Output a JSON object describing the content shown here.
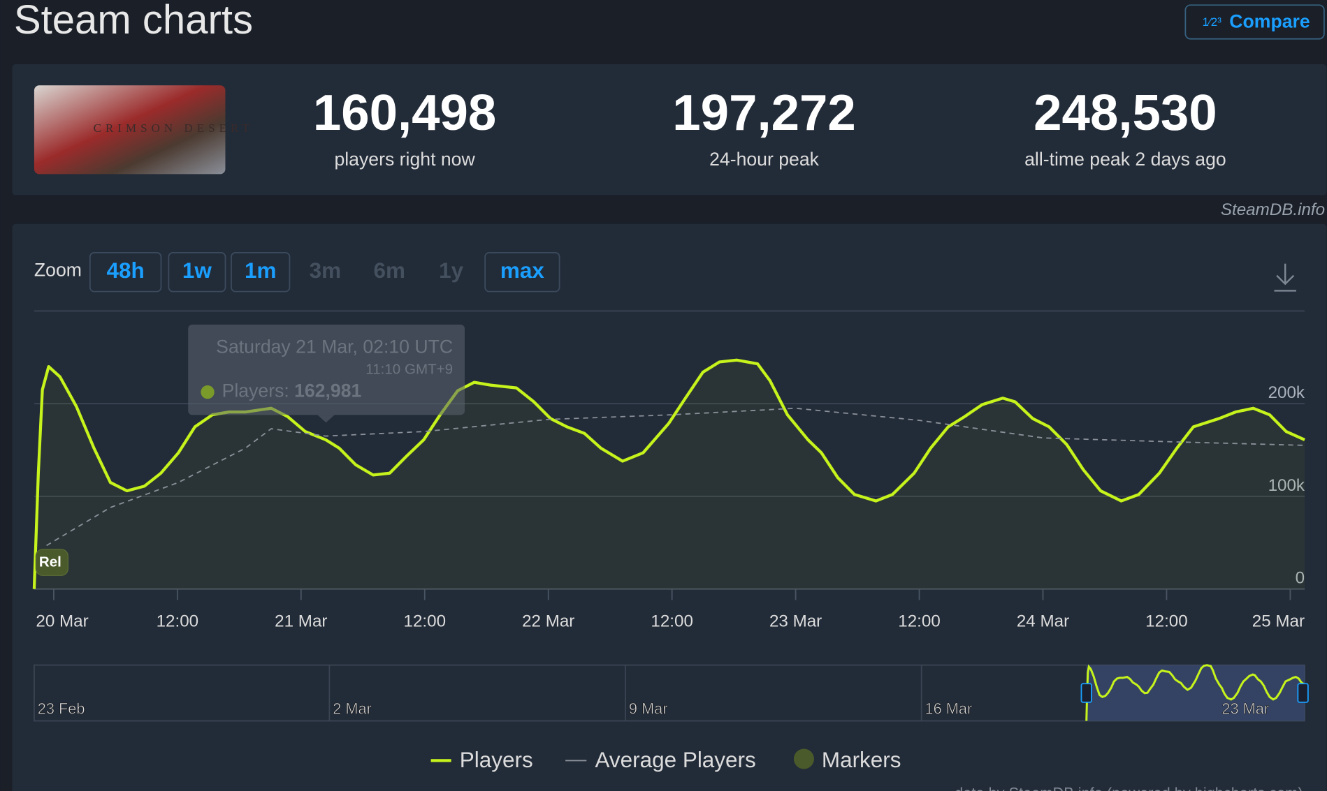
{
  "header": {
    "title": "Steam charts",
    "compare": "Compare",
    "compare_icon": "1⁄2³"
  },
  "game": "CRIMSON DESERT",
  "stats": [
    {
      "value": "160,498",
      "label": "players right now"
    },
    {
      "value": "197,272",
      "label": "24-hour peak"
    },
    {
      "value": "248,530",
      "label": "all-time peak 2 days ago"
    }
  ],
  "credit": "SteamDB.info",
  "zoom": {
    "label": "Zoom",
    "options": [
      {
        "label": "48h",
        "enabled": true
      },
      {
        "label": "1w",
        "enabled": true
      },
      {
        "label": "1m",
        "enabled": true
      },
      {
        "label": "3m",
        "enabled": false
      },
      {
        "label": "6m",
        "enabled": false
      },
      {
        "label": "1y",
        "enabled": false
      },
      {
        "label": "max",
        "enabled": true
      }
    ]
  },
  "chart_data": {
    "type": "line",
    "x": [
      -1.9,
      -1.5,
      -1.1,
      -0.5,
      0.6,
      2.2,
      3.9,
      5.5,
      7.1,
      8.8,
      10.4,
      12.1,
      13.7,
      15.4,
      17.0,
      18.6,
      21.1,
      22.7,
      24.4,
      26.4,
      27.7,
      29.3,
      31.0,
      32.6,
      34.2,
      35.9,
      37.5,
      39.2,
      40.8,
      42.4,
      44.9,
      46.6,
      48.2,
      49.8,
      51.5,
      53.1,
      55.2,
      57.2,
      59.7,
      61.3,
      63.0,
      64.6,
      66.3,
      68.3,
      69.5,
      71.2,
      73.2,
      74.5,
      76.1,
      77.7,
      79.8,
      81.4,
      83.5,
      85.1,
      86.8,
      88.4,
      90.1,
      92.1,
      93.3,
      95.0,
      96.6,
      98.3,
      99.9,
      101.6,
      103.6,
      105.3,
      107.3,
      109.0,
      110.6,
      113.1,
      114.7,
      116.4,
      118.0,
      119.6,
      121.4
    ],
    "series": [
      {
        "name": "Players",
        "color": "#c6f31c",
        "values": [
          0,
          125000,
          215000,
          240000,
          229000,
          197000,
          152000,
          115000,
          106000,
          111000,
          125000,
          147000,
          175000,
          188000,
          191000,
          191000,
          195000,
          186000,
          170000,
          161000,
          152000,
          134000,
          123000,
          125000,
          143000,
          161000,
          188000,
          214000,
          223000,
          220000,
          217000,
          202000,
          184000,
          175000,
          168000,
          152000,
          138000,
          147000,
          179000,
          206000,
          234000,
          245000,
          247000,
          243000,
          225000,
          188000,
          161000,
          147000,
          120000,
          102000,
          95000,
          102000,
          125000,
          152000,
          175000,
          186000,
          199000,
          206000,
          202000,
          184000,
          175000,
          156000,
          129000,
          106000,
          95000,
          102000,
          125000,
          152000,
          175000,
          184000,
          191000,
          195000,
          188000,
          170000,
          161000
        ]
      },
      {
        "name": "Average Players",
        "color": "#8a9099",
        "dashed": true,
        "x": [
          -0.7,
          5.5,
          12.1,
          18.6,
          21.1,
          26.4,
          36,
          48,
          60,
          72,
          84,
          96,
          108,
          121.4
        ],
        "values": [
          47000,
          88000,
          115000,
          152000,
          173000,
          165000,
          170000,
          183000,
          188000,
          195000,
          182000,
          163000,
          159000,
          155000
        ]
      }
    ],
    "xlim": [
      -1.9,
      121.4
    ],
    "xticks": [
      {
        "value": 0,
        "label": "20 Mar"
      },
      {
        "value": 12,
        "label": "12:00"
      },
      {
        "value": 24,
        "label": "21 Mar"
      },
      {
        "value": 36,
        "label": "12:00"
      },
      {
        "value": 48,
        "label": "22 Mar"
      },
      {
        "value": 60,
        "label": "12:00"
      },
      {
        "value": 72,
        "label": "23 Mar"
      },
      {
        "value": 84,
        "label": "12:00"
      },
      {
        "value": 96,
        "label": "24 Mar"
      },
      {
        "value": 108,
        "label": "12:00"
      },
      {
        "value": 120,
        "label": "25 Mar"
      }
    ],
    "ylim": [
      0,
      300000
    ],
    "yticks": [
      {
        "value": 0,
        "label": "0"
      },
      {
        "value": 100000,
        "label": "100k"
      },
      {
        "value": 200000,
        "label": "200k"
      }
    ],
    "grid": true,
    "marker": "Rel",
    "markers_legend": "Markers",
    "tooltip": {
      "title": "Saturday 21 Mar, 02:10 UTC",
      "subtitle": "11:10 GMT+9",
      "label": "Players:",
      "value": "162,981"
    },
    "navigator": [
      "23 Feb",
      "2 Mar",
      "9 Mar",
      "16 Mar",
      "23 Mar"
    ]
  },
  "footer": "data by SteamDB.info (powered by highcharts.com)"
}
